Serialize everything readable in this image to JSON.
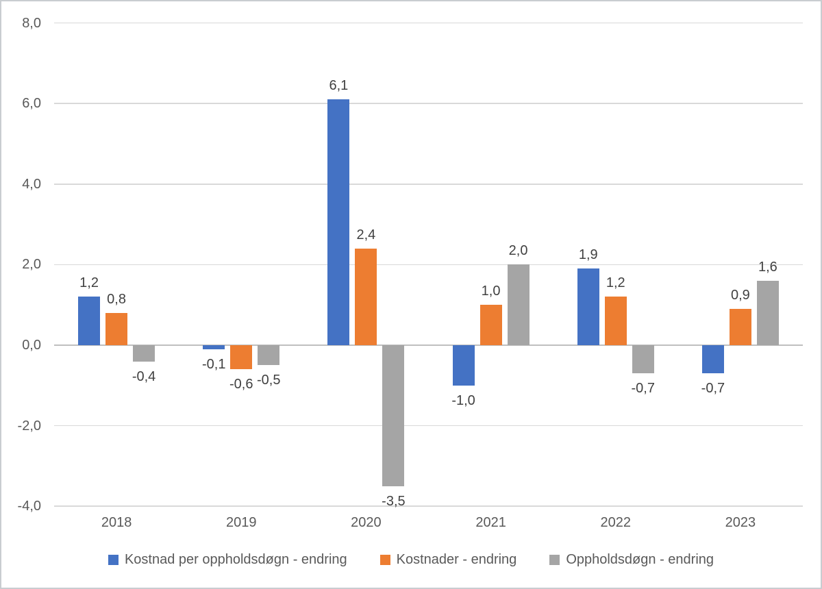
{
  "chart_data": {
    "type": "bar",
    "title": "",
    "categories": [
      "2018",
      "2019",
      "2020",
      "2021",
      "2022",
      "2023"
    ],
    "series": [
      {
        "name": "Kostnad per oppholdsdøgn - endring",
        "color": "#4472C4",
        "values": [
          1.2,
          -0.1,
          6.1,
          -1.0,
          1.9,
          -0.7
        ]
      },
      {
        "name": "Kostnader - endring",
        "color": "#ED7D31",
        "values": [
          0.8,
          -0.6,
          2.4,
          1.0,
          1.2,
          0.9
        ]
      },
      {
        "name": "Oppholdsdøgn - endring",
        "color": "#A5A5A5",
        "values": [
          -0.4,
          -0.5,
          -3.5,
          2.0,
          -0.7,
          1.6
        ]
      }
    ],
    "y_axis": {
      "min": -4.0,
      "max": 8.0,
      "tick_step": 2.0,
      "tick_values": [
        8,
        6,
        4,
        2,
        0,
        -2,
        -4
      ],
      "tick_labels": [
        "8,0",
        "6,0",
        "4,0",
        "2,0",
        "0,0",
        "-2,0",
        "-4,0"
      ]
    },
    "xlabel": "",
    "ylabel": "",
    "grid": true,
    "legend_position": "bottom",
    "decimal_separator": ",",
    "data_labels": true
  },
  "colors": {
    "gridline": "#D9D9D9",
    "zero_axis": "#BFBFBF",
    "axis_text": "#595959",
    "data_label_text": "#404040",
    "background": "#FFFFFF",
    "border": "#C9CDD0"
  }
}
